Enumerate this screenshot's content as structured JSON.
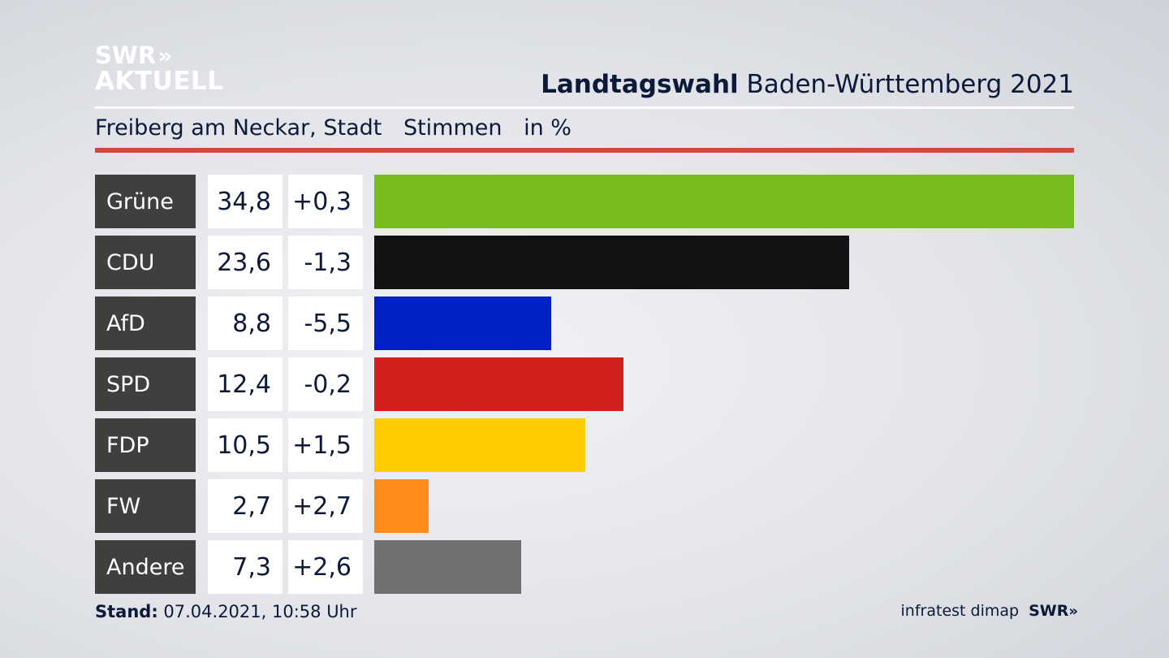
{
  "logo": {
    "line1": "SWR",
    "chevrons": "»",
    "line2": "AKTUELL"
  },
  "header": {
    "title_bold": "Landtagswahl",
    "title_rest": "Baden-Württemberg 2021"
  },
  "subheader": {
    "location": "Freiberg am Neckar, Stadt",
    "measure": "Stimmen",
    "unit": "in %"
  },
  "footer": {
    "stand_label": "Stand:",
    "stand_value": "07.04.2021, 10:58 Uhr",
    "source": "infratest dimap",
    "brand": "SWR",
    "brand_chevrons": "»"
  },
  "colors": {
    "accent_red": "#cf4a3a",
    "label_bg": "#3f3f3e"
  },
  "chart_data": {
    "type": "bar",
    "orientation": "horizontal",
    "categories": [
      "Grüne",
      "CDU",
      "AfD",
      "SPD",
      "FDP",
      "FW",
      "Andere"
    ],
    "values": [
      34.8,
      23.6,
      8.8,
      12.4,
      10.5,
      2.7,
      7.3
    ],
    "value_labels": [
      "34,8",
      "23,6",
      "8,8",
      "12,4",
      "10,5",
      "2,7",
      "7,3"
    ],
    "changes": [
      0.3,
      -1.3,
      -5.5,
      -0.2,
      1.5,
      2.7,
      2.6
    ],
    "change_labels": [
      "+0,3",
      "-1,3",
      "-5,5",
      "-0,2",
      "+1,5",
      "+2,7",
      "+2,6"
    ],
    "colors": [
      "#77bc1f",
      "#121212",
      "#0021c6",
      "#d41f1f",
      "#ffcc00",
      "#ff8c1a",
      "#707070"
    ],
    "xlim": [
      0,
      34.8
    ],
    "grid": false,
    "legend": "none"
  }
}
